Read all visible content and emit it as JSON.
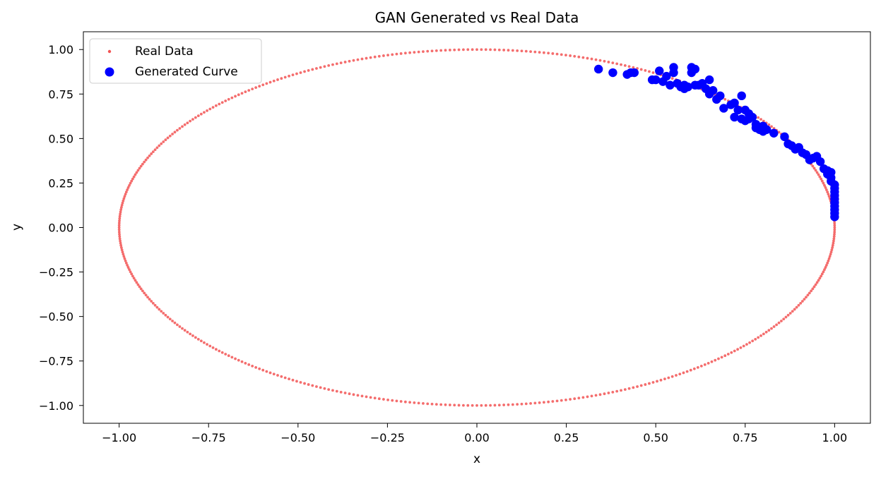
{
  "chart_data": {
    "type": "scatter",
    "title": "GAN Generated vs Real Data",
    "xlabel": "x",
    "ylabel": "y",
    "xlim": [
      -1.1,
      1.1
    ],
    "ylim": [
      -1.1,
      1.1
    ],
    "xticks": [
      -1.0,
      -0.75,
      -0.5,
      -0.25,
      0.0,
      0.25,
      0.5,
      0.75,
      1.0
    ],
    "yticks": [
      -1.0,
      -0.75,
      -0.5,
      -0.25,
      0.0,
      0.25,
      0.5,
      0.75,
      1.0
    ],
    "xtick_labels": [
      "−1.00",
      "−0.75",
      "−0.50",
      "−0.25",
      "0.00",
      "0.25",
      "0.50",
      "0.75",
      "1.00"
    ],
    "ytick_labels": [
      "−1.00",
      "−0.75",
      "−0.50",
      "−0.25",
      "0.00",
      "0.25",
      "0.50",
      "0.75",
      "1.00"
    ],
    "grid": false,
    "legend_position": "top-left",
    "series": [
      {
        "name": "Real Data",
        "color": "#f25454",
        "marker": "small-dot",
        "shape": "unit circle x = cos(t), y = sin(t), 500 evenly spaced points, t from 0 to 2π"
      },
      {
        "name": "Generated Curve",
        "color": "#0000ff",
        "marker": "large-dot",
        "points": [
          [
            0.34,
            0.89
          ],
          [
            0.38,
            0.87
          ],
          [
            0.42,
            0.86
          ],
          [
            0.43,
            0.87
          ],
          [
            0.44,
            0.87
          ],
          [
            0.49,
            0.83
          ],
          [
            0.5,
            0.83
          ],
          [
            0.51,
            0.88
          ],
          [
            0.52,
            0.82
          ],
          [
            0.53,
            0.85
          ],
          [
            0.54,
            0.8
          ],
          [
            0.55,
            0.9
          ],
          [
            0.55,
            0.87
          ],
          [
            0.56,
            0.81
          ],
          [
            0.57,
            0.79
          ],
          [
            0.58,
            0.8
          ],
          [
            0.58,
            0.78
          ],
          [
            0.59,
            0.79
          ],
          [
            0.6,
            0.87
          ],
          [
            0.6,
            0.9
          ],
          [
            0.61,
            0.89
          ],
          [
            0.61,
            0.8
          ],
          [
            0.62,
            0.8
          ],
          [
            0.63,
            0.81
          ],
          [
            0.64,
            0.78
          ],
          [
            0.65,
            0.83
          ],
          [
            0.65,
            0.75
          ],
          [
            0.66,
            0.77
          ],
          [
            0.67,
            0.72
          ],
          [
            0.68,
            0.74
          ],
          [
            0.69,
            0.67
          ],
          [
            0.71,
            0.69
          ],
          [
            0.72,
            0.7
          ],
          [
            0.72,
            0.62
          ],
          [
            0.73,
            0.66
          ],
          [
            0.74,
            0.74
          ],
          [
            0.74,
            0.61
          ],
          [
            0.75,
            0.66
          ],
          [
            0.75,
            0.6
          ],
          [
            0.76,
            0.64
          ],
          [
            0.76,
            0.61
          ],
          [
            0.77,
            0.62
          ],
          [
            0.78,
            0.58
          ],
          [
            0.78,
            0.56
          ],
          [
            0.79,
            0.55
          ],
          [
            0.8,
            0.54
          ],
          [
            0.8,
            0.57
          ],
          [
            0.81,
            0.55
          ],
          [
            0.83,
            0.53
          ],
          [
            0.86,
            0.51
          ],
          [
            0.87,
            0.47
          ],
          [
            0.88,
            0.46
          ],
          [
            0.89,
            0.44
          ],
          [
            0.9,
            0.45
          ],
          [
            0.91,
            0.42
          ],
          [
            0.92,
            0.41
          ],
          [
            0.93,
            0.38
          ],
          [
            0.94,
            0.39
          ],
          [
            0.95,
            0.4
          ],
          [
            0.96,
            0.37
          ],
          [
            0.97,
            0.33
          ],
          [
            0.98,
            0.32
          ],
          [
            0.98,
            0.3
          ],
          [
            0.99,
            0.31
          ],
          [
            0.99,
            0.28
          ],
          [
            0.99,
            0.26
          ],
          [
            1.0,
            0.24
          ],
          [
            1.0,
            0.22
          ],
          [
            1.0,
            0.2
          ],
          [
            1.0,
            0.18
          ],
          [
            1.0,
            0.16
          ],
          [
            1.0,
            0.14
          ],
          [
            1.0,
            0.12
          ],
          [
            1.0,
            0.1
          ],
          [
            1.0,
            0.08
          ],
          [
            1.0,
            0.06
          ]
        ]
      }
    ]
  }
}
